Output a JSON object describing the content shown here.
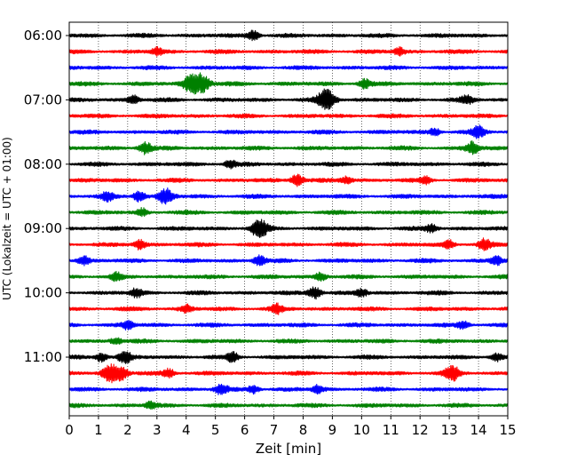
{
  "chart_data": {
    "type": "line",
    "xlabel": "Zeit  [min]",
    "ylabel": "UTC (Lokalzeit = UTC + 01:00)",
    "xlim": [
      0,
      15
    ],
    "x_ticks": [
      "0",
      "1",
      "2",
      "3",
      "4",
      "5",
      "6",
      "7",
      "8",
      "9",
      "10",
      "11",
      "12",
      "13",
      "14",
      "15"
    ],
    "y_ticks": [
      "06:00",
      "07:00",
      "08:00",
      "09:00",
      "10:00",
      "11:00"
    ],
    "grid": "vertical dotted",
    "trace_interval_minutes": 15,
    "colors": [
      "#000000",
      "#ff0000",
      "#0000ff",
      "#008000"
    ],
    "traces": [
      {
        "start": "06:00",
        "color": "#000000",
        "events": [
          {
            "t": 6.3,
            "amp": 1.6
          }
        ]
      },
      {
        "start": "06:15",
        "color": "#ff0000",
        "events": [
          {
            "t": 3.0,
            "amp": 1.2
          },
          {
            "t": 11.3,
            "amp": 1.3
          }
        ]
      },
      {
        "start": "06:30",
        "color": "#0000ff",
        "events": []
      },
      {
        "start": "06:45",
        "color": "#008000",
        "events": [
          {
            "t": 4.1,
            "amp": 2.2
          },
          {
            "t": 4.5,
            "amp": 3.5
          },
          {
            "t": 10.1,
            "amp": 1.5
          }
        ]
      },
      {
        "start": "07:00",
        "color": "#000000",
        "events": [
          {
            "t": 2.2,
            "amp": 1.4
          },
          {
            "t": 8.8,
            "amp": 3.5
          },
          {
            "t": 13.6,
            "amp": 1.4
          }
        ]
      },
      {
        "start": "07:15",
        "color": "#ff0000",
        "events": []
      },
      {
        "start": "07:30",
        "color": "#0000ff",
        "events": [
          {
            "t": 14.0,
            "amp": 1.8
          },
          {
            "t": 12.5,
            "amp": 1.3
          }
        ]
      },
      {
        "start": "07:45",
        "color": "#008000",
        "events": [
          {
            "t": 2.6,
            "amp": 2.0
          },
          {
            "t": 13.8,
            "amp": 2.0
          }
        ]
      },
      {
        "start": "08:00",
        "color": "#000000",
        "events": [
          {
            "t": 5.5,
            "amp": 1.3
          }
        ]
      },
      {
        "start": "08:15",
        "color": "#ff0000",
        "events": [
          {
            "t": 7.8,
            "amp": 2.0
          },
          {
            "t": 9.5,
            "amp": 1.3
          },
          {
            "t": 12.2,
            "amp": 1.2
          }
        ]
      },
      {
        "start": "08:30",
        "color": "#0000ff",
        "events": [
          {
            "t": 1.3,
            "amp": 1.3
          },
          {
            "t": 2.4,
            "amp": 1.8
          },
          {
            "t": 3.3,
            "amp": 2.5
          }
        ]
      },
      {
        "start": "08:45",
        "color": "#008000",
        "events": [
          {
            "t": 2.5,
            "amp": 1.2
          }
        ]
      },
      {
        "start": "09:00",
        "color": "#000000",
        "events": [
          {
            "t": 6.5,
            "amp": 3.0
          },
          {
            "t": 12.4,
            "amp": 1.3
          }
        ]
      },
      {
        "start": "09:15",
        "color": "#ff0000",
        "events": [
          {
            "t": 2.4,
            "amp": 1.5
          },
          {
            "t": 14.2,
            "amp": 1.8
          },
          {
            "t": 13.0,
            "amp": 1.3
          }
        ]
      },
      {
        "start": "09:30",
        "color": "#0000ff",
        "events": [
          {
            "t": 0.5,
            "amp": 1.4
          },
          {
            "t": 6.5,
            "amp": 1.6
          },
          {
            "t": 14.6,
            "amp": 1.5
          }
        ]
      },
      {
        "start": "09:45",
        "color": "#008000",
        "events": [
          {
            "t": 1.6,
            "amp": 1.2
          },
          {
            "t": 8.6,
            "amp": 1.3
          }
        ]
      },
      {
        "start": "10:00",
        "color": "#000000",
        "events": [
          {
            "t": 2.3,
            "amp": 1.4
          },
          {
            "t": 8.4,
            "amp": 2.0
          },
          {
            "t": 10.0,
            "amp": 1.3
          }
        ]
      },
      {
        "start": "10:15",
        "color": "#ff0000",
        "events": [
          {
            "t": 4.0,
            "amp": 1.3
          },
          {
            "t": 7.1,
            "amp": 1.4
          }
        ]
      },
      {
        "start": "10:30",
        "color": "#0000ff",
        "events": [
          {
            "t": 2.0,
            "amp": 1.3
          },
          {
            "t": 13.5,
            "amp": 1.4
          }
        ]
      },
      {
        "start": "10:45",
        "color": "#008000",
        "events": [
          {
            "t": 1.6,
            "amp": 1.2
          }
        ]
      },
      {
        "start": "11:00",
        "color": "#000000",
        "events": [
          {
            "t": 1.1,
            "amp": 1.5
          },
          {
            "t": 1.9,
            "amp": 2.0
          },
          {
            "t": 5.6,
            "amp": 1.5
          },
          {
            "t": 14.6,
            "amp": 1.4
          }
        ]
      },
      {
        "start": "11:15",
        "color": "#ff0000",
        "events": [
          {
            "t": 1.4,
            "amp": 2.8
          },
          {
            "t": 1.8,
            "amp": 2.0
          },
          {
            "t": 3.4,
            "amp": 1.5
          },
          {
            "t": 13.1,
            "amp": 2.4
          }
        ]
      },
      {
        "start": "11:30",
        "color": "#0000ff",
        "events": [
          {
            "t": 5.2,
            "amp": 1.8
          },
          {
            "t": 6.3,
            "amp": 1.3
          },
          {
            "t": 8.5,
            "amp": 1.3
          }
        ]
      },
      {
        "start": "11:45",
        "color": "#008000",
        "events": [
          {
            "t": 2.8,
            "amp": 1.2
          }
        ]
      }
    ]
  }
}
